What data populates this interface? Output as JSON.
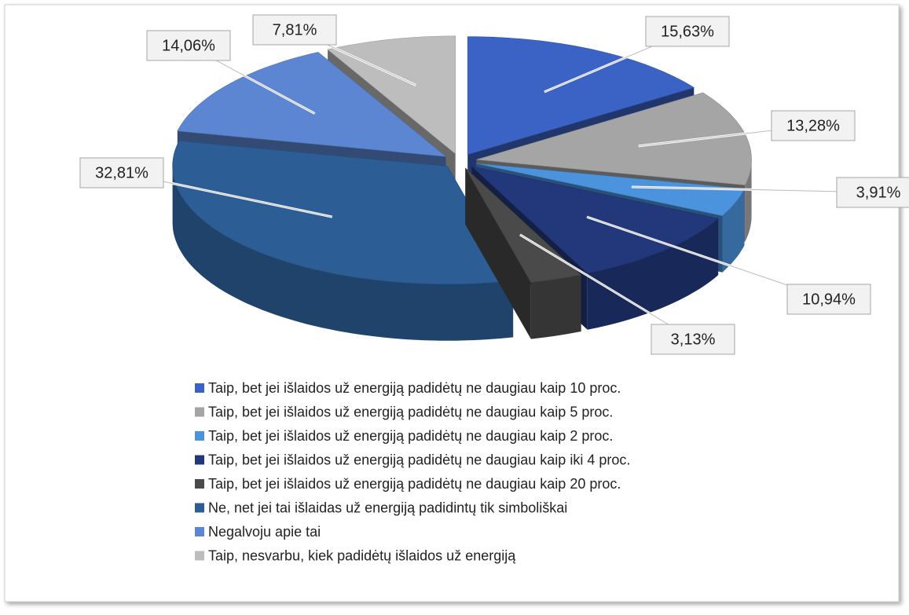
{
  "chart_data": {
    "type": "pie3d",
    "categories": [
      "Taip, bet jei išlaidos už energiją padidėtų ne daugiau kaip 10 proc.",
      "Taip, bet jei išlaidos už energiją padidėtų ne daugiau kaip 5 proc.",
      "Taip, bet jei išlaidos už energiją padidėtų ne daugiau kaip 2 proc.",
      "Taip, bet jei išlaidos už energiją padidėtų ne daugiau kaip iki 4 proc.",
      "Taip, bet jei išlaidos už energiją padidėtų ne daugiau kaip 20 proc.",
      "Ne, net jei tai išlaidas už energiją padidintų tik simboliškai",
      "Negalvoju apie tai",
      "Taip, nesvarbu, kiek padidėtų išlaidos už energiją"
    ],
    "values": [
      15.63,
      13.28,
      3.91,
      10.94,
      3.13,
      32.81,
      14.06,
      7.81
    ],
    "value_labels": [
      "15,63%",
      "13,28%",
      "3,91%",
      "10,94%",
      "3,13%",
      "32,81%",
      "14,06%",
      "7,81%"
    ],
    "colors": [
      "#3b63c6",
      "#a5a5a5",
      "#4b93dc",
      "#22387a",
      "#4a4a4a",
      "#2c5d95",
      "#5d86d2",
      "#bdbdbd"
    ],
    "legend": "bottom"
  }
}
